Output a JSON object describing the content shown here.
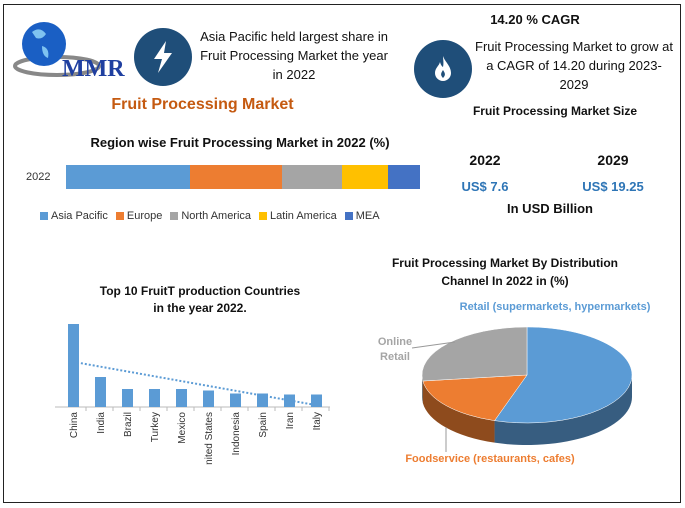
{
  "logo": {
    "text": "MMR"
  },
  "info1": {
    "icon": "lightning-bolt-icon",
    "text": "Asia Pacific held largest share in Fruit Processing Market the year in 2022"
  },
  "info2": {
    "title": "14.20 % CAGR",
    "icon": "flame-icon",
    "text": "Fruit Processing Market to grow at a CAGR of 14.20 during 2023-2029"
  },
  "main_title": "Fruit Processing Market",
  "market_size": {
    "title": "Fruit Processing Market Size",
    "year1": "2022",
    "value1": "US$ 7.6",
    "year2": "2029",
    "value2": "US$ 19.25",
    "unit": "In USD Billion"
  },
  "colors": {
    "accent_orange": "#c55a11",
    "value_blue": "#2e75b6",
    "icon_bg": "#1f4e79"
  },
  "chart_data": [
    {
      "type": "bar",
      "stacked": true,
      "orientation": "horizontal",
      "title": "Region wise Fruit Processing Market in 2022 (%)",
      "categories": [
        "2022"
      ],
      "series": [
        {
          "name": "Asia Pacific",
          "values": [
            35
          ],
          "color": "#5b9bd5"
        },
        {
          "name": "Europe",
          "values": [
            26
          ],
          "color": "#ed7d31"
        },
        {
          "name": "North America",
          "values": [
            17
          ],
          "color": "#a5a5a5"
        },
        {
          "name": "Latin America",
          "values": [
            13
          ],
          "color": "#ffc000"
        },
        {
          "name": "MEA",
          "values": [
            9
          ],
          "color": "#4472c4"
        }
      ],
      "legend": "bottom"
    },
    {
      "type": "bar",
      "title": "Top 10 FruitT production Countries in the year 2022.",
      "categories": [
        "China",
        "India",
        "Brazil",
        "Turkey",
        "Mexico",
        "United States",
        "Indonesia",
        "Spain",
        "Iran",
        "Italy"
      ],
      "values": [
        83,
        30,
        18,
        18,
        18,
        16.5,
        13.5,
        13.5,
        12.5,
        12.5
      ],
      "trendline": "linear dotted",
      "color": "#5b9bd5",
      "y_axis_labels": false
    },
    {
      "type": "pie",
      "style": "3d",
      "title": "Fruit Processing Market By Distribution Channel In 2022 in (%)",
      "slices": [
        {
          "label": "Retail (supermarkets, hypermarkets)",
          "value": 55,
          "color": "#5b9bd5"
        },
        {
          "label": "Foodservice (restaurants, cafes)",
          "value": 18,
          "color": "#ed7d31"
        },
        {
          "label": "Online Retail",
          "value": 27,
          "color": "#a5a5a5"
        }
      ]
    }
  ]
}
